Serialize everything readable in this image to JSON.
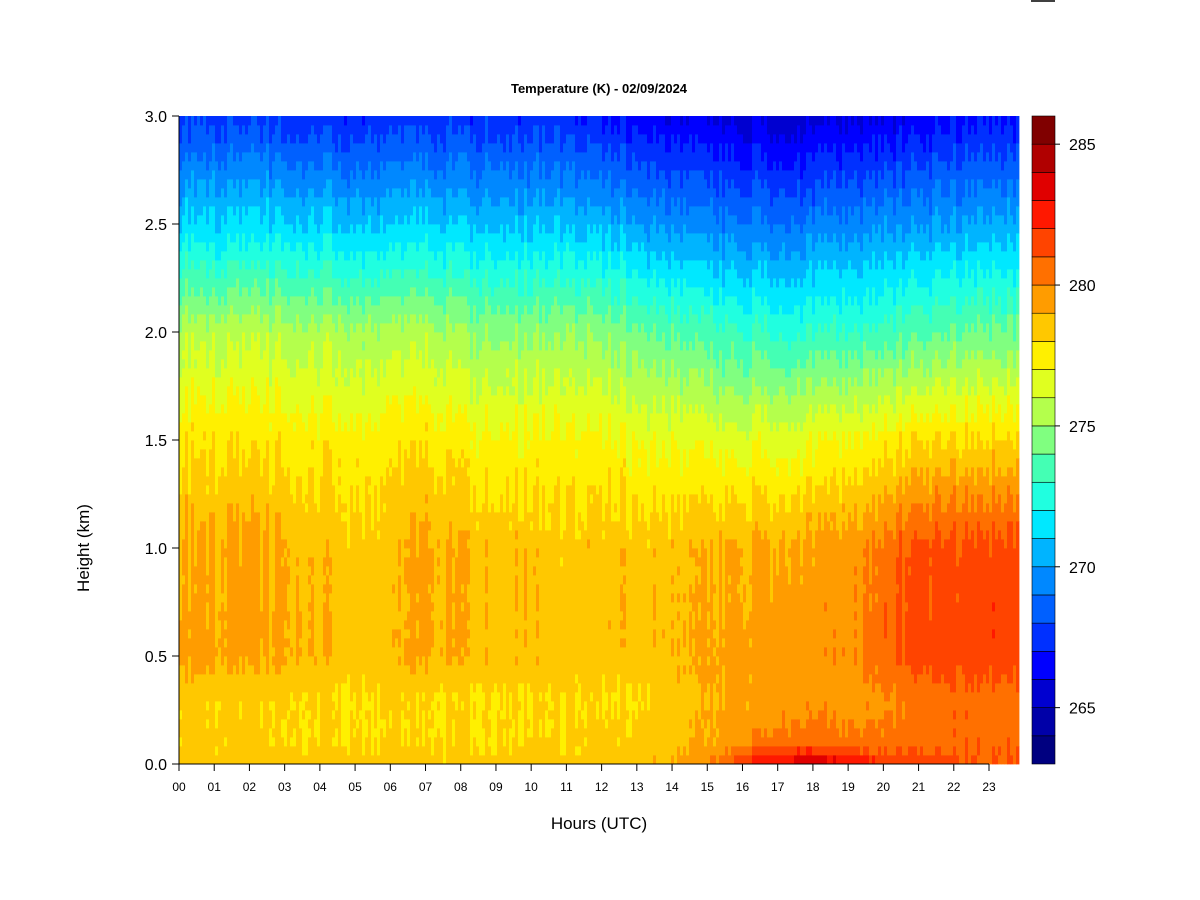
{
  "chart_data": {
    "type": "heatmap",
    "title": "Temperature (K) - 02/09/2024",
    "xlabel": "Hours (UTC)",
    "ylabel": "Height (km)",
    "xlim": [
      0,
      24
    ],
    "ylim": [
      0,
      3.0
    ],
    "x_tick_labels": [
      "00",
      "01",
      "02",
      "03",
      "04",
      "05",
      "06",
      "07",
      "08",
      "09",
      "10",
      "11",
      "12",
      "13",
      "14",
      "15",
      "16",
      "17",
      "18",
      "19",
      "20",
      "21",
      "22",
      "23"
    ],
    "y_tick_labels": [
      "0.0",
      "0.5",
      "1.0",
      "1.5",
      "2.0",
      "2.5",
      "3.0"
    ],
    "colorbar": {
      "levels_min": 263,
      "levels_max": 286,
      "step": 1,
      "tick_labels": [
        "265",
        "270",
        "275",
        "280",
        "285"
      ],
      "colors": [
        "#000080",
        "#0000A8",
        "#0000D0",
        "#0000FF",
        "#0030FF",
        "#0060FF",
        "#0088FF",
        "#00B4FF",
        "#00E8FF",
        "#20FFE0",
        "#44FFB4",
        "#80FF80",
        "#B4FF4C",
        "#E0FF20",
        "#FFF000",
        "#FFC800",
        "#FF9C00",
        "#FF7000",
        "#FF4400",
        "#FF1800",
        "#E00000",
        "#B00000",
        "#800000"
      ]
    },
    "heights_km": [
      0.0,
      0.1,
      0.3,
      0.5,
      1.0,
      1.5,
      2.0,
      2.5,
      3.0
    ],
    "hours": [
      0,
      1,
      2,
      3,
      4,
      5,
      6,
      7,
      8,
      9,
      10,
      11,
      12,
      13,
      14,
      15,
      16,
      17,
      18,
      19,
      20,
      21,
      22,
      23,
      24
    ],
    "temperature_K": [
      [
        278.6,
        278.5,
        278.5,
        278.5,
        278.4,
        278.4,
        278.3,
        278.4,
        278.4,
        278.3,
        278.4,
        278.4,
        278.5,
        278.6,
        279.0,
        279.6,
        281.5,
        283.6,
        284.0,
        283.2,
        282.3,
        281.6,
        281.2,
        281.0,
        281.0
      ],
      [
        278.3,
        278.2,
        278.2,
        278.1,
        278.1,
        278.0,
        278.0,
        278.0,
        278.1,
        278.0,
        278.1,
        278.1,
        278.2,
        278.3,
        278.6,
        279.0,
        279.8,
        280.4,
        280.6,
        280.3,
        280.2,
        280.6,
        280.7,
        280.8,
        280.8
      ],
      [
        278.2,
        278.3,
        278.2,
        278.2,
        278.1,
        278.0,
        278.0,
        278.0,
        277.9,
        278.0,
        278.1,
        278.1,
        278.0,
        277.9,
        278.4,
        278.8,
        279.2,
        279.5,
        279.6,
        279.5,
        279.8,
        280.4,
        280.6,
        280.6,
        280.6
      ],
      [
        279.5,
        279.2,
        279.1,
        279.2,
        279.0,
        278.7,
        278.6,
        279.2,
        278.9,
        278.6,
        278.7,
        278.6,
        278.6,
        278.7,
        278.8,
        279.1,
        279.4,
        279.5,
        279.6,
        279.7,
        280.5,
        281.4,
        281.5,
        281.6,
        281.6
      ],
      [
        279.1,
        279.1,
        279.2,
        279.2,
        278.7,
        278.5,
        278.5,
        279.3,
        278.9,
        278.6,
        278.7,
        278.5,
        278.6,
        278.6,
        278.6,
        278.8,
        279.1,
        279.2,
        279.3,
        279.5,
        280.3,
        281.3,
        281.4,
        281.5,
        281.5
      ],
      [
        277.8,
        277.8,
        277.7,
        277.7,
        277.6,
        277.5,
        277.5,
        277.8,
        277.4,
        277.2,
        277.3,
        277.4,
        277.3,
        277.0,
        276.8,
        276.6,
        276.5,
        276.6,
        276.8,
        277.0,
        277.4,
        277.8,
        278.0,
        278.1,
        278.1
      ],
      [
        275.6,
        275.5,
        275.6,
        275.6,
        275.4,
        275.3,
        275.2,
        275.5,
        275.0,
        274.8,
        274.8,
        275.0,
        274.8,
        274.3,
        273.8,
        273.4,
        273.1,
        272.9,
        272.9,
        273.1,
        273.4,
        273.7,
        274.0,
        274.2,
        274.2
      ],
      [
        271.3,
        271.2,
        271.2,
        271.3,
        271.1,
        270.9,
        270.8,
        271.1,
        270.8,
        270.8,
        270.8,
        270.9,
        270.6,
        270.2,
        269.7,
        269.4,
        269.2,
        269.0,
        269.1,
        269.4,
        269.7,
        269.9,
        270.1,
        270.3,
        270.3
      ],
      [
        267.6,
        267.6,
        267.5,
        267.4,
        267.3,
        267.2,
        267.3,
        267.3,
        267.4,
        267.3,
        267.2,
        267.3,
        266.9,
        266.5,
        266.1,
        265.9,
        265.6,
        265.4,
        265.5,
        265.8,
        266.1,
        266.2,
        266.5,
        266.8,
        266.8
      ]
    ]
  }
}
